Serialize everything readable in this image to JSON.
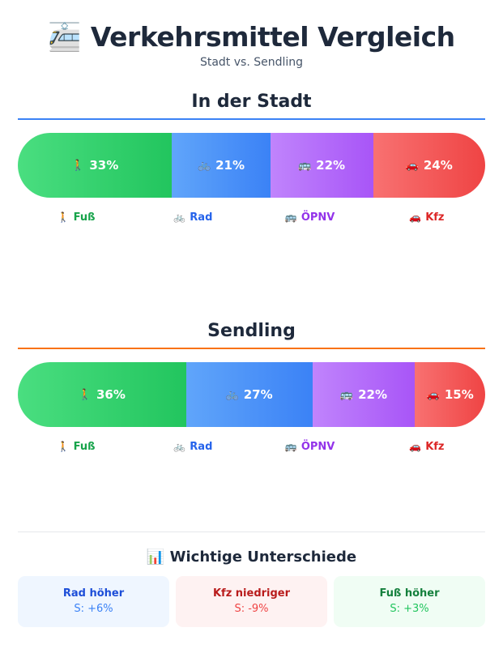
{
  "header": {
    "icon": "🚈",
    "title": "Verkehrsmittel Vergleich",
    "subtitle": "Stadt vs. Sendling"
  },
  "sections": [
    {
      "title": "In der Stadt",
      "line_color": "#3b82f6",
      "segments": [
        {
          "key": "fuss",
          "emoji": "🚶",
          "value": 33,
          "label": "33%"
        },
        {
          "key": "rad",
          "emoji": "🚲",
          "value": 21,
          "label": "21%"
        },
        {
          "key": "oepnv",
          "emoji": "🚌",
          "value": 22,
          "label": "22%"
        },
        {
          "key": "kfz",
          "emoji": "🚗",
          "value": 24,
          "label": "24%"
        }
      ]
    },
    {
      "title": "Sendling",
      "line_color": "#f97316",
      "segments": [
        {
          "key": "fuss",
          "emoji": "🚶",
          "value": 36,
          "label": "36%"
        },
        {
          "key": "rad",
          "emoji": "🚲",
          "value": 27,
          "label": "27%"
        },
        {
          "key": "oepnv",
          "emoji": "🚌",
          "value": 22,
          "label": "22%"
        },
        {
          "key": "kfz",
          "emoji": "🚗",
          "value": 15,
          "label": "15%"
        }
      ]
    }
  ],
  "legend": [
    {
      "emoji": "🚶",
      "label": "Fuß",
      "color": "#16a34a"
    },
    {
      "emoji": "🚲",
      "label": "Rad",
      "color": "#2563eb"
    },
    {
      "emoji": "🚌",
      "label": "ÖPNV",
      "color": "#9333ea"
    },
    {
      "emoji": "🚗",
      "label": "Kfz",
      "color": "#dc2626"
    }
  ],
  "differences": {
    "icon": "📊",
    "title": "Wichtige Unterschiede",
    "cards": [
      {
        "title": "Rad höher",
        "value": "S: +6%",
        "bg": "#eff6ff",
        "title_color": "#1d4ed8",
        "value_color": "#3b82f6"
      },
      {
        "title": "Kfz niedriger",
        "value": "S: -9%",
        "bg": "#fef2f2",
        "title_color": "#b91c1c",
        "value_color": "#ef4444"
      },
      {
        "title": "Fuß höher",
        "value": "S: +3%",
        "bg": "#f0fdf4",
        "title_color": "#15803d",
        "value_color": "#22c55e"
      }
    ]
  }
}
